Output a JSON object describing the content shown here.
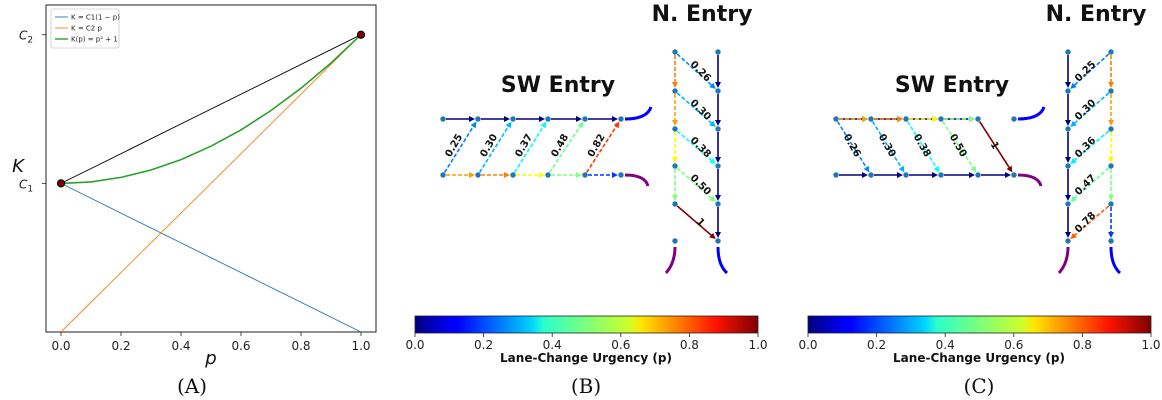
{
  "panels": {
    "a": {
      "caption": "(A)"
    },
    "b": {
      "caption": "(B)",
      "sw_title": "SW Entry",
      "n_title": "N. Entry"
    },
    "c": {
      "caption": "(C)",
      "sw_title": "SW Entry",
      "n_title": "N. Entry"
    }
  },
  "colorbar": {
    "label": "Lane-Change Urgency (p)",
    "ticks": [
      "0.0",
      "0.2",
      "0.4",
      "0.6",
      "0.8",
      "1.0"
    ]
  },
  "chart_data": [
    {
      "type": "line",
      "title": "",
      "xlabel": "p",
      "ylabel": "K",
      "xlim": [
        -0.05,
        1.05
      ],
      "ylim": [
        0,
        1.1
      ],
      "xticks": [
        "0.0",
        "0.2",
        "0.4",
        "0.6",
        "0.8",
        "1.0"
      ],
      "yticks": [
        {
          "label": "C1",
          "value": 0.5
        },
        {
          "label": "C2",
          "value": 1.0
        }
      ],
      "legend_position": "top-left",
      "series": [
        {
          "name": "K = C1(1 − p)",
          "color": "#1f77b4",
          "x": [
            0,
            1
          ],
          "y": [
            0.5,
            0
          ]
        },
        {
          "name": "K = C2 p",
          "color": "#ff7f0e",
          "x": [
            0,
            1
          ],
          "y": [
            0,
            1.0
          ]
        },
        {
          "name": "K(p) = p² + 1",
          "color": "#2ca02c",
          "x": [
            0,
            0.1,
            0.2,
            0.3,
            0.4,
            0.5,
            0.6,
            0.7,
            0.8,
            0.9,
            1.0
          ],
          "y": [
            0.5,
            0.505,
            0.52,
            0.545,
            0.58,
            0.625,
            0.68,
            0.745,
            0.82,
            0.905,
            1.0
          ]
        },
        {
          "name": "",
          "color": "#000000",
          "x": [
            0,
            1
          ],
          "y": [
            0.5,
            1.0
          ]
        }
      ],
      "points": [
        {
          "x": 0,
          "y": 0.5
        },
        {
          "x": 1,
          "y": 1.0
        }
      ]
    },
    {
      "type": "graph",
      "panel": "B",
      "sw_weights": [
        "0.25",
        "0.30",
        "0.37",
        "0.48",
        "0.82"
      ],
      "n_weights": [
        "0.26",
        "0.30",
        "0.38",
        "0.50",
        "1"
      ],
      "sw_values": [
        0.25,
        0.3,
        0.37,
        0.48,
        0.82
      ],
      "n_values": [
        0.26,
        0.3,
        0.38,
        0.5,
        1.0
      ]
    },
    {
      "type": "graph",
      "panel": "C",
      "sw_weights": [
        "0.26",
        "0.30",
        "0.38",
        "0.50",
        "1"
      ],
      "n_weights": [
        "0.25",
        "0.30",
        "0.36",
        "0.47",
        "0.78"
      ],
      "sw_values": [
        0.26,
        0.3,
        0.38,
        0.5,
        1.0
      ],
      "n_values": [
        0.25,
        0.3,
        0.36,
        0.47,
        0.78
      ]
    }
  ]
}
